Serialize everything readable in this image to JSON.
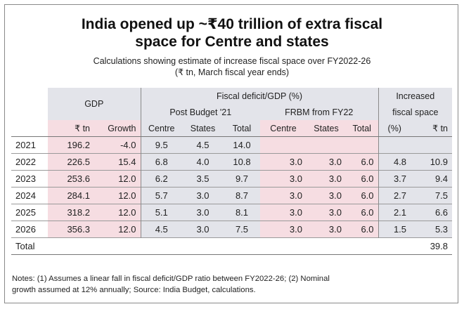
{
  "title": {
    "line1": "India opened up ~₹40 trillion of extra fiscal",
    "line2": "space for Centre and states"
  },
  "subtitle": {
    "line1": "Calculations showing estimate of increase fiscal space over FY2022-26",
    "line2": "(₹ tn, March fiscal year ends)"
  },
  "header": {
    "gdp": "GDP",
    "fiscal_deficit": "Fiscal deficit/GDP (%)",
    "post_budget": "Post Budget '21",
    "frbm": "FRBM from FY22",
    "increased_line1": "Increased",
    "increased_line2": "fiscal space",
    "col_tn": "₹ tn",
    "col_growth": "Growth",
    "col_centre": "Centre",
    "col_states": "States",
    "col_total": "Total",
    "col_pct": "(%)",
    "col_tn2": "₹ tn"
  },
  "rows": [
    {
      "year": "2021",
      "gdp_tn": "196.2",
      "growth": "-4.0",
      "pb_centre": "9.5",
      "pb_states": "4.5",
      "pb_total": "14.0",
      "fr_centre": "",
      "fr_states": "",
      "fr_total": "",
      "inc_pct": "",
      "inc_tn": ""
    },
    {
      "year": "2022",
      "gdp_tn": "226.5",
      "growth": "15.4",
      "pb_centre": "6.8",
      "pb_states": "4.0",
      "pb_total": "10.8",
      "fr_centre": "3.0",
      "fr_states": "3.0",
      "fr_total": "6.0",
      "inc_pct": "4.8",
      "inc_tn": "10.9"
    },
    {
      "year": "2023",
      "gdp_tn": "253.6",
      "growth": "12.0",
      "pb_centre": "6.2",
      "pb_states": "3.5",
      "pb_total": "9.7",
      "fr_centre": "3.0",
      "fr_states": "3.0",
      "fr_total": "6.0",
      "inc_pct": "3.7",
      "inc_tn": "9.4"
    },
    {
      "year": "2024",
      "gdp_tn": "284.1",
      "growth": "12.0",
      "pb_centre": "5.7",
      "pb_states": "3.0",
      "pb_total": "8.7",
      "fr_centre": "3.0",
      "fr_states": "3.0",
      "fr_total": "6.0",
      "inc_pct": "2.7",
      "inc_tn": "7.5"
    },
    {
      "year": "2025",
      "gdp_tn": "318.2",
      "growth": "12.0",
      "pb_centre": "5.1",
      "pb_states": "3.0",
      "pb_total": "8.1",
      "fr_centre": "3.0",
      "fr_states": "3.0",
      "fr_total": "6.0",
      "inc_pct": "2.1",
      "inc_tn": "6.6"
    },
    {
      "year": "2026",
      "gdp_tn": "356.3",
      "growth": "12.0",
      "pb_centre": "4.5",
      "pb_states": "3.0",
      "pb_total": "7.5",
      "fr_centre": "3.0",
      "fr_states": "3.0",
      "fr_total": "6.0",
      "inc_pct": "1.5",
      "inc_tn": "5.3"
    }
  ],
  "total": {
    "label": "Total",
    "value": "39.8"
  },
  "notes": {
    "line1": "Notes: (1) Assumes a linear fall in fiscal deficit/GDP ratio between FY2022-26; (2) Nominal",
    "line2": "growth assumed at 12% annually; Source: India Budget, calculations."
  },
  "colors": {
    "pink": "#f6dde2",
    "gray": "#e3e4ea"
  }
}
